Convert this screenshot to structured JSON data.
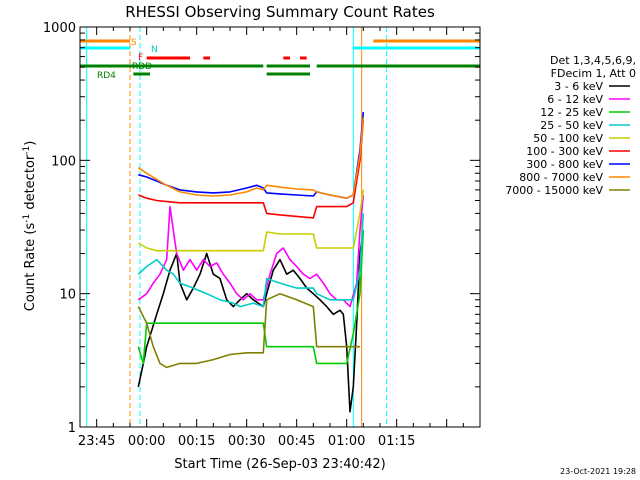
{
  "chart_data": {
    "type": "line",
    "title": "RHESSI Observing Summary Count Rates",
    "xlabel": "Start Time (26-Sep-03 23:40:42)",
    "ylabel_main": "Count Rate (s",
    "ylabel_sup1": "-1",
    "ylabel_mid": " detector",
    "ylabel_sup2": "-1",
    "ylabel_end": ")",
    "yscale": "log",
    "ylim": [
      1,
      1000
    ],
    "xlim_minutes": [
      -20,
      100
    ],
    "x_ticks": [
      {
        "m": -15,
        "label": "23:45"
      },
      {
        "m": 0,
        "label": "00:00"
      },
      {
        "m": 15,
        "label": "00:15"
      },
      {
        "m": 30,
        "label": "00:30"
      },
      {
        "m": 45,
        "label": "00:45"
      },
      {
        "m": 60,
        "label": "01:00"
      },
      {
        "m": 75,
        "label": "01:15"
      }
    ],
    "y_ticks": [
      {
        "v": 1,
        "label": "1"
      },
      {
        "v": 10,
        "label": "10"
      },
      {
        "v": 100,
        "label": "100"
      },
      {
        "v": 1000,
        "label": "1000"
      }
    ],
    "legend_header": [
      "Det 1,3,4,5,6,9,",
      "FDecim 1, Att 0"
    ],
    "series": [
      {
        "name": "3 - 6 keV",
        "color": "#000000",
        "points": [
          [
            -2.5,
            2
          ],
          [
            -1,
            3
          ],
          [
            0,
            4
          ],
          [
            3,
            7
          ],
          [
            5,
            10
          ],
          [
            7,
            15
          ],
          [
            9,
            20
          ],
          [
            10,
            12
          ],
          [
            12,
            9
          ],
          [
            14,
            11
          ],
          [
            16,
            14
          ],
          [
            18,
            20
          ],
          [
            20,
            14
          ],
          [
            22,
            13
          ],
          [
            24,
            9
          ],
          [
            26,
            8
          ],
          [
            28,
            9
          ],
          [
            30,
            10
          ],
          [
            32,
            9
          ],
          [
            35,
            8
          ],
          [
            36,
            10
          ],
          [
            38,
            15
          ],
          [
            40,
            18
          ],
          [
            42,
            14
          ],
          [
            44,
            15
          ],
          [
            46,
            13
          ],
          [
            48,
            11
          ],
          [
            50,
            10
          ],
          [
            52,
            9
          ],
          [
            54,
            8
          ],
          [
            56,
            7
          ],
          [
            58,
            7.5
          ],
          [
            59,
            7
          ],
          [
            60,
            4
          ],
          [
            61,
            1.3
          ],
          [
            62,
            2
          ],
          [
            63,
            6
          ],
          [
            64,
            20
          ],
          [
            65,
            30
          ]
        ]
      },
      {
        "name": "6 - 12 keV",
        "color": "#ff00ff",
        "points": [
          [
            -2.5,
            9
          ],
          [
            0,
            10
          ],
          [
            2,
            12
          ],
          [
            4,
            14
          ],
          [
            6,
            18
          ],
          [
            7,
            45
          ],
          [
            8,
            30
          ],
          [
            9,
            20
          ],
          [
            11,
            15
          ],
          [
            13,
            18
          ],
          [
            15,
            15
          ],
          [
            17,
            18
          ],
          [
            19,
            16
          ],
          [
            21,
            17
          ],
          [
            23,
            14
          ],
          [
            25,
            12
          ],
          [
            27,
            10
          ],
          [
            29,
            9
          ],
          [
            31,
            10
          ],
          [
            33,
            9
          ],
          [
            35,
            9
          ],
          [
            37,
            14
          ],
          [
            39,
            20
          ],
          [
            41,
            22
          ],
          [
            43,
            18
          ],
          [
            45,
            16
          ],
          [
            47,
            14
          ],
          [
            49,
            13
          ],
          [
            51,
            14
          ],
          [
            53,
            12
          ],
          [
            55,
            10
          ],
          [
            57,
            9
          ],
          [
            59,
            9
          ],
          [
            61,
            8
          ],
          [
            63,
            12
          ],
          [
            64,
            30
          ],
          [
            65,
            55
          ]
        ]
      },
      {
        "name": "12 - 25 keV",
        "color": "#00cc00",
        "points": [
          [
            -2.5,
            4
          ],
          [
            -1,
            3
          ],
          [
            0,
            6
          ],
          [
            5,
            6
          ],
          [
            10,
            6
          ],
          [
            15,
            6
          ],
          [
            20,
            6
          ],
          [
            25,
            6
          ],
          [
            30,
            6
          ],
          [
            35,
            6
          ],
          [
            36,
            4
          ],
          [
            40,
            4
          ],
          [
            45,
            4
          ],
          [
            50,
            4
          ],
          [
            51,
            3
          ],
          [
            55,
            3
          ],
          [
            60,
            3
          ],
          [
            62,
            5
          ],
          [
            64,
            10
          ],
          [
            65,
            30
          ]
        ]
      },
      {
        "name": "25 - 50 keV",
        "color": "#00cccc",
        "points": [
          [
            -2.5,
            14
          ],
          [
            0,
            16
          ],
          [
            3,
            18
          ],
          [
            6,
            15
          ],
          [
            8,
            14
          ],
          [
            10,
            12
          ],
          [
            14,
            11
          ],
          [
            18,
            10
          ],
          [
            22,
            9
          ],
          [
            26,
            8.5
          ],
          [
            28,
            8
          ],
          [
            32,
            8.5
          ],
          [
            35,
            8
          ],
          [
            36,
            13
          ],
          [
            40,
            12
          ],
          [
            45,
            11
          ],
          [
            50,
            11
          ],
          [
            51,
            10
          ],
          [
            55,
            9
          ],
          [
            60,
            9
          ],
          [
            62,
            9
          ],
          [
            64,
            15
          ],
          [
            65,
            40
          ]
        ]
      },
      {
        "name": "50 - 100 keV",
        "color": "#cccc00",
        "points": [
          [
            -2.5,
            24
          ],
          [
            0,
            22
          ],
          [
            3,
            21
          ],
          [
            6,
            21
          ],
          [
            10,
            21
          ],
          [
            15,
            21
          ],
          [
            20,
            21
          ],
          [
            25,
            21
          ],
          [
            30,
            21
          ],
          [
            35,
            21
          ],
          [
            36,
            29
          ],
          [
            40,
            28
          ],
          [
            45,
            28
          ],
          [
            50,
            28
          ],
          [
            51,
            22
          ],
          [
            55,
            22
          ],
          [
            60,
            22
          ],
          [
            62,
            22
          ],
          [
            64,
            40
          ],
          [
            65,
            60
          ]
        ]
      },
      {
        "name": "100 - 300 keV",
        "color": "#ff0000",
        "points": [
          [
            -2.5,
            55
          ],
          [
            0,
            52
          ],
          [
            3,
            50
          ],
          [
            6,
            49
          ],
          [
            10,
            48
          ],
          [
            15,
            48
          ],
          [
            20,
            48
          ],
          [
            25,
            48
          ],
          [
            30,
            48
          ],
          [
            35,
            48
          ],
          [
            36,
            40
          ],
          [
            40,
            39
          ],
          [
            45,
            38
          ],
          [
            50,
            37
          ],
          [
            51,
            45
          ],
          [
            55,
            45
          ],
          [
            60,
            45
          ],
          [
            62,
            48
          ],
          [
            64,
            100
          ],
          [
            65,
            200
          ]
        ]
      },
      {
        "name": "300 - 800 keV",
        "color": "#0000ff",
        "points": [
          [
            -2.5,
            78
          ],
          [
            0,
            75
          ],
          [
            3,
            70
          ],
          [
            6,
            65
          ],
          [
            10,
            60
          ],
          [
            15,
            58
          ],
          [
            20,
            57
          ],
          [
            25,
            58
          ],
          [
            30,
            62
          ],
          [
            33,
            65
          ],
          [
            35,
            62
          ],
          [
            36,
            57
          ],
          [
            40,
            56
          ],
          [
            45,
            55
          ],
          [
            50,
            54
          ],
          [
            51,
            58
          ],
          [
            55,
            55
          ],
          [
            60,
            52
          ],
          [
            62,
            55
          ],
          [
            64,
            120
          ],
          [
            65,
            230
          ]
        ]
      },
      {
        "name": "800 - 7000 keV",
        "color": "#ff8800",
        "points": [
          [
            -2.5,
            88
          ],
          [
            0,
            80
          ],
          [
            3,
            72
          ],
          [
            6,
            65
          ],
          [
            10,
            58
          ],
          [
            15,
            55
          ],
          [
            20,
            54
          ],
          [
            25,
            55
          ],
          [
            30,
            58
          ],
          [
            33,
            62
          ],
          [
            35,
            60
          ],
          [
            36,
            65
          ],
          [
            40,
            63
          ],
          [
            45,
            61
          ],
          [
            50,
            60
          ],
          [
            51,
            58
          ],
          [
            55,
            55
          ],
          [
            60,
            52
          ],
          [
            62,
            55
          ],
          [
            64,
            110
          ],
          [
            65,
            210
          ]
        ]
      },
      {
        "name": "7000 - 15000 keV",
        "color": "#808000",
        "points": [
          [
            -2.5,
            8
          ],
          [
            0,
            6
          ],
          [
            2,
            4
          ],
          [
            4,
            3
          ],
          [
            6,
            2.8
          ],
          [
            10,
            3
          ],
          [
            15,
            3
          ],
          [
            20,
            3.2
          ],
          [
            25,
            3.5
          ],
          [
            30,
            3.6
          ],
          [
            35,
            3.6
          ],
          [
            36,
            9
          ],
          [
            40,
            10
          ],
          [
            45,
            9
          ],
          [
            50,
            8
          ],
          [
            51,
            4
          ],
          [
            55,
            4
          ],
          [
            60,
            4
          ],
          [
            62,
            4
          ],
          [
            64,
            4
          ]
        ]
      }
    ],
    "flag_labels": {
      "s": "S",
      "n": "N",
      "f": "F",
      "rdd": "RDD",
      "rd4": "RD4"
    },
    "flag_bars": [
      {
        "label": "S",
        "color": "#ff8800",
        "y": 1,
        "segs": [
          [
            -20,
            -5
          ],
          [
            68,
            100
          ]
        ]
      },
      {
        "label": "N",
        "color": "#00ffff",
        "y": 2,
        "segs": [
          [
            -20,
            -5
          ],
          [
            62,
            100
          ]
        ]
      },
      {
        "label": "F",
        "color": "#ff0000",
        "y": 3,
        "segs": [
          [
            0,
            13
          ],
          [
            17,
            19
          ],
          [
            41,
            43
          ],
          [
            46,
            48
          ]
        ]
      },
      {
        "label": "RDD",
        "color": "#008000",
        "y": 4,
        "segs": [
          [
            -20,
            35
          ],
          [
            36,
            49
          ],
          [
            51,
            100
          ]
        ]
      },
      {
        "label": "RD4",
        "color": "#008000",
        "y": 5,
        "segs": [
          [
            -4,
            1
          ],
          [
            36,
            49
          ]
        ]
      }
    ],
    "vlines": [
      {
        "m": -18,
        "color": "#00ffff",
        "dashed": false
      },
      {
        "m": -5,
        "color": "#ff8800",
        "dashed": true
      },
      {
        "m": -2,
        "color": "#00ffff",
        "dashed": true
      },
      {
        "m": 62,
        "color": "#00ffff",
        "dashed": false
      },
      {
        "m": 64.5,
        "color": "#ff8800",
        "dashed": false
      },
      {
        "m": 72,
        "color": "#00ffff",
        "dashed": true
      }
    ],
    "timestamp": "23-Oct-2021 19:28"
  }
}
